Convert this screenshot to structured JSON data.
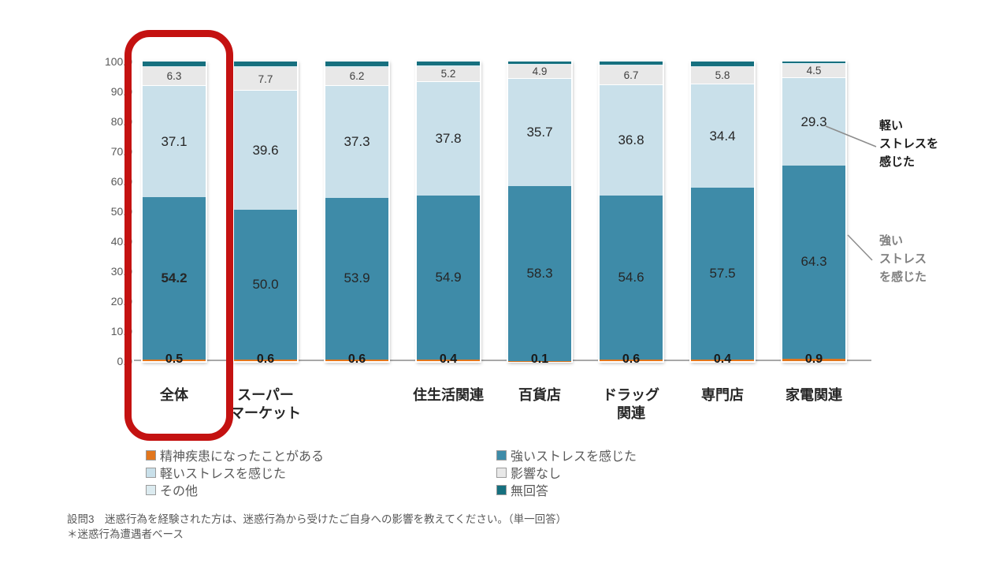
{
  "chart_data": {
    "type": "bar",
    "subtype": "100-percent-stacked-column",
    "title": "",
    "xlabel": "",
    "ylabel": "",
    "ylim": [
      0,
      100
    ],
    "ytick_step": 10,
    "ytick_labels": [
      "0.0",
      "10.0",
      "20.0",
      "30.0",
      "40.0",
      "50.0",
      "60.0",
      "70.0",
      "80.0",
      "90.0",
      "100.0"
    ],
    "grid": false,
    "legend_position": "bottom-two-columns",
    "categories": [
      "全体",
      "スーパー\nマーケット",
      "",
      "住生活関連",
      "百貨店",
      "ドラッグ\n関連",
      "専門店",
      "家電関連"
    ],
    "series": [
      {
        "name": "精神疾患になったことがある",
        "color": "#e2761d",
        "labels_shown": true,
        "values": [
          0.5,
          0.6,
          0.6,
          0.4,
          0.1,
          0.6,
          0.4,
          0.9
        ]
      },
      {
        "name": "強いストレスを感じた",
        "color": "#3e8ba8",
        "labels_shown": true,
        "values": [
          54.2,
          50.0,
          53.9,
          54.9,
          58.3,
          54.6,
          57.5,
          64.3
        ]
      },
      {
        "name": "軽いストレスを感じた",
        "color": "#c9e0ea",
        "labels_shown": true,
        "values": [
          37.1,
          39.6,
          37.3,
          37.8,
          35.7,
          36.8,
          34.4,
          29.3
        ]
      },
      {
        "name": "影響なし",
        "color": "#e8e8e8",
        "labels_shown": true,
        "values": [
          6.3,
          7.7,
          6.2,
          5.2,
          4.9,
          6.7,
          5.8,
          4.5
        ]
      },
      {
        "name": "その他",
        "color": "#dcebf0",
        "labels_shown": false,
        "estimated": true,
        "values": [
          0.4,
          0.5,
          0.4,
          0.3,
          0.2,
          0.3,
          0.4,
          0.6
        ]
      },
      {
        "name": "無回答",
        "color": "#16707f",
        "labels_shown": false,
        "estimated": true,
        "values": [
          1.5,
          1.6,
          1.6,
          1.4,
          0.8,
          1.0,
          1.5,
          0.4
        ]
      }
    ],
    "emphasis": {
      "note": "value label 54.2 of 全体 is bold",
      "bar_index": 0,
      "series_index": 1
    }
  },
  "legend": {
    "columns": [
      [
        0,
        2,
        4
      ],
      [
        1,
        3,
        5
      ]
    ]
  },
  "annotations": {
    "light_stress": {
      "text": "軽い\nストレスを\n感じた",
      "color": "#1a1a1a"
    },
    "strong_stress": {
      "text": "強い\nストレス\nを感じた",
      "color": "#808080"
    }
  },
  "highlight": {
    "category": "全体",
    "color": "#c41211"
  },
  "caption": {
    "line1": "設問3　迷惑行為を経験された方は、迷惑行為から受けたご自身への影響を教えてください。（単一回答）",
    "line2": "＊迷惑行為遭遇者ベース"
  }
}
